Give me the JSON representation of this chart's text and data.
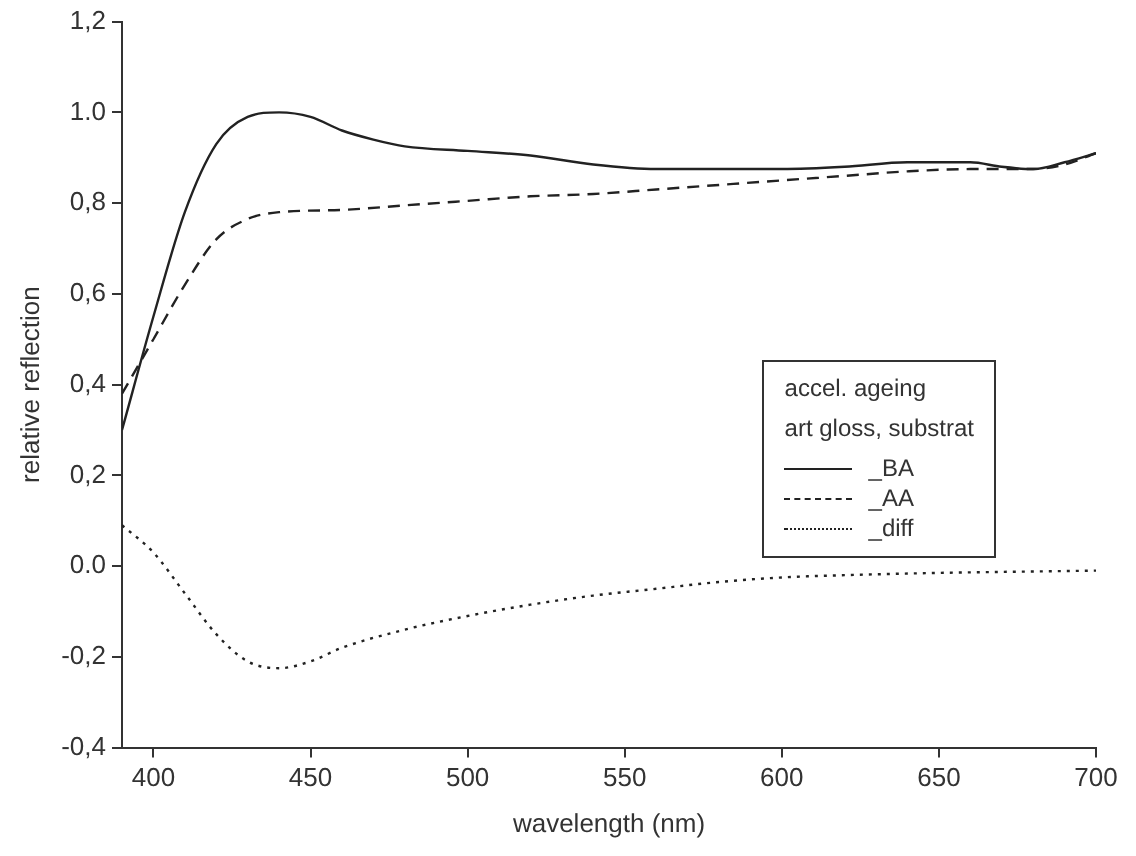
{
  "chart_data": {
    "type": "line",
    "xlabel": "wavelength (nm)",
    "ylabel": "relative reflection",
    "legend_title": "accel. ageing\nart gloss, substrat",
    "legend": "right",
    "grid": false,
    "marker": "none",
    "xlim": [
      390,
      700
    ],
    "xticks": [
      400,
      450,
      500,
      550,
      600,
      650,
      700
    ],
    "ylim": [
      -0.4,
      1.2
    ],
    "yticks": [
      {
        "value": -0.4,
        "label": "-0,4"
      },
      {
        "value": -0.2,
        "label": "-0,2"
      },
      {
        "value": 0,
        "label": "0.0"
      },
      {
        "value": 0.2,
        "label": "0,2"
      },
      {
        "value": 0.4,
        "label": "0,4"
      },
      {
        "value": 0.6,
        "label": "0,6"
      },
      {
        "value": 0.8,
        "label": "0,8"
      },
      {
        "value": 1.0,
        "label": "1.0"
      },
      {
        "value": 1.2,
        "label": "1,2"
      }
    ],
    "series": [
      {
        "name": "_BA",
        "color": "#222222",
        "line_style": "solid",
        "x": [
          390,
          400,
          410,
          420,
          430,
          440,
          450,
          460,
          470,
          480,
          500,
          520,
          540,
          560,
          580,
          600,
          620,
          640,
          660,
          670,
          680,
          690,
          700
        ],
        "values": [
          0.3,
          0.55,
          0.78,
          0.93,
          0.99,
          1.0,
          0.99,
          0.96,
          0.94,
          0.925,
          0.915,
          0.905,
          0.885,
          0.875,
          0.875,
          0.875,
          0.88,
          0.89,
          0.89,
          0.88,
          0.875,
          0.89,
          0.91
        ]
      },
      {
        "name": "_AA",
        "color": "#222222",
        "line_style": "dashed",
        "x": [
          390,
          400,
          410,
          420,
          430,
          440,
          460,
          480,
          500,
          520,
          540,
          560,
          580,
          600,
          620,
          640,
          660,
          680,
          690,
          700
        ],
        "values": [
          0.38,
          0.5,
          0.62,
          0.72,
          0.765,
          0.78,
          0.785,
          0.795,
          0.805,
          0.815,
          0.82,
          0.83,
          0.84,
          0.85,
          0.86,
          0.87,
          0.875,
          0.875,
          0.885,
          0.91
        ]
      },
      {
        "name": "_diff",
        "color": "#222222",
        "line_style": "dotted",
        "x": [
          390,
          400,
          410,
          420,
          430,
          440,
          450,
          460,
          480,
          500,
          520,
          540,
          560,
          580,
          600,
          620,
          650,
          700
        ],
        "values": [
          0.09,
          0.03,
          -0.06,
          -0.15,
          -0.21,
          -0.225,
          -0.21,
          -0.18,
          -0.14,
          -0.11,
          -0.085,
          -0.065,
          -0.05,
          -0.035,
          -0.025,
          -0.02,
          -0.015,
          -0.01
        ]
      }
    ]
  }
}
